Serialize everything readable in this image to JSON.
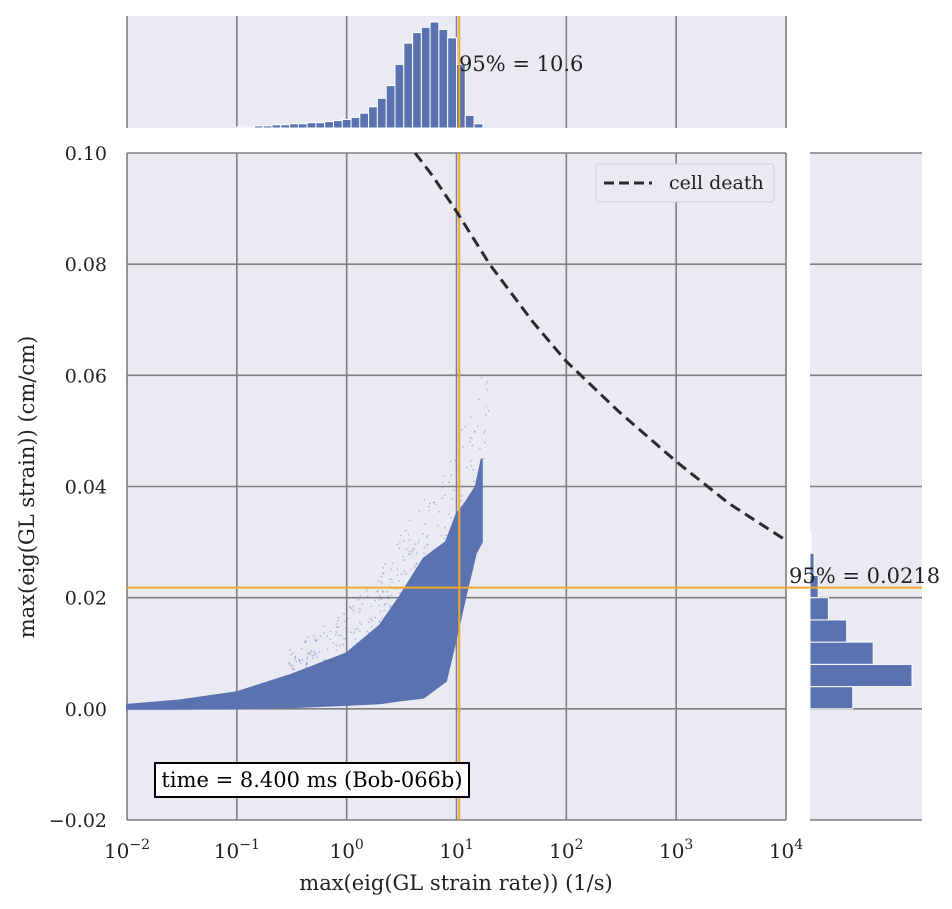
{
  "chart_data": {
    "type": "scatter",
    "main": {
      "xlabel": "max(eig(GL strain rate)) (1/s)",
      "ylabel": "max(eig(GL strain)) (cm/cm)",
      "xscale": "log",
      "xlim": [
        0.01,
        10000
      ],
      "ylim": [
        -0.02,
        0.1
      ],
      "x_ticks": [
        {
          "value": 0.01,
          "base": "10",
          "exp": "−2"
        },
        {
          "value": 0.1,
          "base": "10",
          "exp": "−1"
        },
        {
          "value": 1,
          "base": "10",
          "exp": "0"
        },
        {
          "value": 10,
          "base": "10",
          "exp": "1"
        },
        {
          "value": 100,
          "base": "10",
          "exp": "2"
        },
        {
          "value": 1000,
          "base": "10",
          "exp": "3"
        },
        {
          "value": 10000,
          "base": "10",
          "exp": "4"
        }
      ],
      "y_ticks": [
        {
          "value": -0.02,
          "label": "−0.02"
        },
        {
          "value": 0.0,
          "label": "0.00"
        },
        {
          "value": 0.02,
          "label": "0.02"
        },
        {
          "value": 0.04,
          "label": "0.04"
        },
        {
          "value": 0.06,
          "label": "0.06"
        },
        {
          "value": 0.08,
          "label": "0.08"
        },
        {
          "value": 0.1,
          "label": "0.10"
        }
      ],
      "grid": true,
      "legend": {
        "placement": "top-right",
        "entries": [
          "cell death"
        ]
      },
      "annotation": "time = 8.400 ms (Bob-066b)",
      "colors": {
        "points": "#5a72b0",
        "threshold": "#f0a830",
        "death": "#2a2a2e",
        "background": "#eaeaf2",
        "grid": "#7f7f7f"
      }
    },
    "series": [
      {
        "name": "cell death",
        "kind": "dashed-line",
        "x": [
          4.2,
          6,
          10,
          20,
          50,
          100,
          300,
          1000,
          3000,
          10000
        ],
        "y": [
          0.1,
          0.096,
          0.0895,
          0.08,
          0.0695,
          0.0625,
          0.0535,
          0.0445,
          0.037,
          0.0303
        ]
      },
      {
        "kind": "scatter-envelope",
        "x": [
          0.01,
          0.03,
          0.1,
          0.3,
          1,
          2,
          3,
          5,
          8,
          10,
          12,
          15,
          17
        ],
        "y_upper": [
          0.0007,
          0.0015,
          0.003,
          0.006,
          0.01,
          0.015,
          0.02,
          0.027,
          0.03,
          0.035,
          0.037,
          0.04,
          0.045
        ],
        "y_lower": [
          0.0,
          0.0,
          0.0001,
          0.0003,
          0.0007,
          0.001,
          0.0015,
          0.002,
          0.005,
          0.013,
          0.02,
          0.028,
          0.03
        ]
      }
    ],
    "thresholds": {
      "x": 10.6,
      "y": 0.0218
    },
    "top_histogram": {
      "label": "95% = 10.6",
      "bins_log10_left": [
        -1,
        -0.92,
        -0.84,
        -0.76,
        -0.68,
        -0.6,
        -0.52,
        -0.44,
        -0.36,
        -0.28,
        -0.2,
        -0.12,
        -0.04,
        0.04,
        0.12,
        0.2,
        0.28,
        0.36,
        0.44,
        0.52,
        0.6,
        0.68,
        0.76,
        0.84,
        0.92,
        1.0,
        1.08,
        1.16
      ],
      "counts": [
        1,
        1,
        2,
        2,
        3,
        3,
        4,
        4,
        5,
        5,
        6,
        7,
        8,
        10,
        14,
        20,
        28,
        40,
        60,
        80,
        90,
        95,
        100,
        93,
        85,
        60,
        12,
        4
      ],
      "bin_width_log10": 0.08
    },
    "right_histogram": {
      "label": "95% = 0.0218",
      "bins_bottom": [
        0.0,
        0.004,
        0.008,
        0.012,
        0.016,
        0.02,
        0.024,
        0.028
      ],
      "counts": [
        42,
        100,
        62,
        36,
        18,
        8,
        4,
        1
      ],
      "bin_height": 0.004
    }
  }
}
